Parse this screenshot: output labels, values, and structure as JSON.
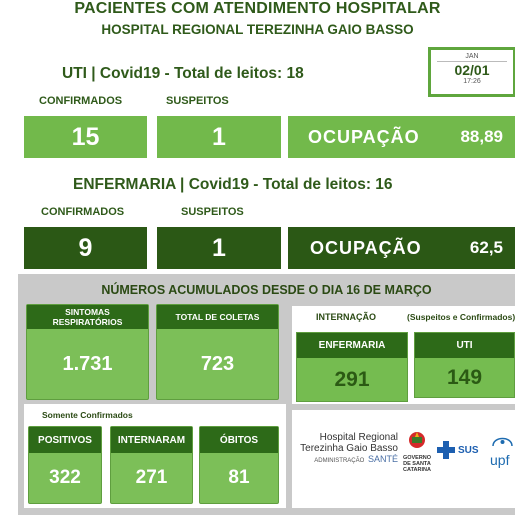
{
  "header": {
    "title": "PACIENTES COM ATENDIMENTO HOSPITALAR",
    "subtitle": "HOSPITAL REGIONAL TEREZINHA GAIO BASSO"
  },
  "date_widget": {
    "month": "JAN",
    "date": "02/01",
    "time": "17:26"
  },
  "uti": {
    "title": "UTI | Covid19 - Total de leitos: 18",
    "confirmados_label": "CONFIRMADOS",
    "suspeitos_label": "SUSPEITOS",
    "confirmados": "15",
    "suspeitos": "1",
    "ocupacao_label": "OCUPAÇÃO",
    "ocupacao_value": "88,89"
  },
  "enfermaria": {
    "title": "ENFERMARIA | Covid19 - Total de leitos: 16",
    "confirmados_label": "CONFIRMADOS",
    "suspeitos_label": "SUSPEITOS",
    "confirmados": "9",
    "suspeitos": "1",
    "ocupacao_label": "OCUPAÇÃO",
    "ocupacao_value": "62,5"
  },
  "acumulados": {
    "title": "NÚMEROS ACUMULADOS DESDE O DIA 16 DE MARÇO",
    "sintomas_label": "SINTOMAS RESPIRATÓRIOS",
    "sintomas_value": "1.731",
    "coletas_label": "TOTAL DE COLETAS",
    "coletas_value": "723",
    "internacao_label": "INTERNAÇÃO",
    "susp_conf_label": "(Suspeitos e Confirmados)",
    "enfermaria_label": "ENFERMARIA",
    "enfermaria_value": "291",
    "uti_label": "UTI",
    "uti_value": "149",
    "somente_label": "Somente Confirmados",
    "positivos_label": "POSITIVOS",
    "positivos_value": "322",
    "internaram_label": "INTERNARAM",
    "internaram_value": "271",
    "obitos_label": "ÓBITOS",
    "obitos_value": "81"
  },
  "logos": {
    "hospital_line1": "Hospital Regional",
    "hospital_line2": "Terezinha Gaio Basso",
    "admin": "ADMINISTRAÇÃO",
    "sante": "SANTÉ",
    "gov_line1": "GOVERNO",
    "gov_line2": "DE SANTA",
    "gov_line3": "CATARINA",
    "sus": "SUS",
    "upf": "upf"
  },
  "colors": {
    "dark_green": "#2b5815",
    "light_green": "#72b94b",
    "panel_gray": "#c9c9c9"
  }
}
